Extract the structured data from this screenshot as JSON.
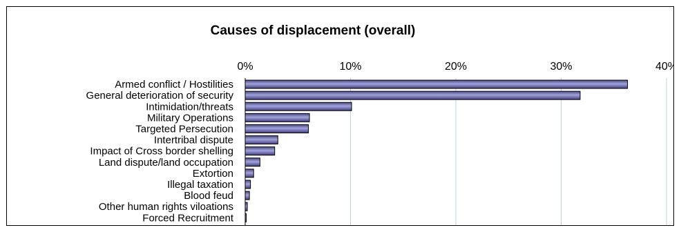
{
  "chart_data": {
    "type": "bar",
    "orientation": "horizontal",
    "title": "Causes of displacement (overall)",
    "xlabel": "",
    "ylabel": "",
    "x_axis_position": "top",
    "xlim": [
      0,
      40
    ],
    "x_ticks": [
      0,
      10,
      20,
      30,
      40
    ],
    "x_tick_labels": [
      "0%",
      "10%",
      "20%",
      "30%",
      "40%"
    ],
    "gridlines": "vertical",
    "legend": "none",
    "bar_color": "#6666aa",
    "categories": [
      "Armed conflict / Hostilities",
      "General deterioration of security",
      "Intimidation/threats",
      "Military Operations",
      "Targeted Persecution",
      "Intertribal dispute",
      "Impact of Cross border shelling",
      "Land dispute/land occupation",
      "Extortion",
      "Illegal taxation",
      "Blood feud",
      "Other human rights viloations",
      "Forced Recruitment"
    ],
    "values": [
      36.3,
      31.8,
      10.1,
      6.1,
      6.0,
      3.1,
      2.8,
      1.4,
      0.8,
      0.5,
      0.4,
      0.2,
      0.1
    ]
  }
}
